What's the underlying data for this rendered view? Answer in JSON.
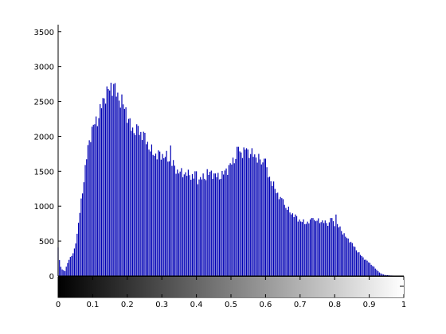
{
  "chart_data": {
    "type": "bar",
    "title": "",
    "xlabel": "",
    "ylabel": "",
    "xlim": [
      0,
      1
    ],
    "ylim": [
      0,
      3600
    ],
    "grid": false,
    "bar_color": "#0000b4",
    "colorbar": {
      "from": "#000000",
      "to": "#ffffff"
    },
    "y_ticks": [
      {
        "value": 0,
        "label": "0"
      },
      {
        "value": 500,
        "label": "500"
      },
      {
        "value": 1000,
        "label": "1000"
      },
      {
        "value": 1500,
        "label": "1500"
      },
      {
        "value": 2000,
        "label": "2000"
      },
      {
        "value": 2500,
        "label": "2500"
      },
      {
        "value": 3000,
        "label": "3000"
      },
      {
        "value": 3500,
        "label": "3500"
      }
    ],
    "x_ticks": [
      {
        "value": 0,
        "label": "0"
      },
      {
        "value": 0.1,
        "label": "0.1"
      },
      {
        "value": 0.2,
        "label": "0.2"
      },
      {
        "value": 0.3,
        "label": "0.3"
      },
      {
        "value": 0.4,
        "label": "0.4"
      },
      {
        "value": 0.5,
        "label": "0.5"
      },
      {
        "value": 0.6,
        "label": "0.6"
      },
      {
        "value": 0.7,
        "label": "0.7"
      },
      {
        "value": 0.8,
        "label": "0.8"
      },
      {
        "value": 0.9,
        "label": "0.9"
      },
      {
        "value": 1,
        "label": "1"
      }
    ],
    "anchors": [
      [
        0.0,
        400
      ],
      [
        0.005,
        170
      ],
      [
        0.012,
        90
      ],
      [
        0.02,
        70
      ],
      [
        0.03,
        230
      ],
      [
        0.045,
        330
      ],
      [
        0.055,
        600
      ],
      [
        0.065,
        1000
      ],
      [
        0.075,
        1400
      ],
      [
        0.085,
        1800
      ],
      [
        0.095,
        2050
      ],
      [
        0.105,
        2180
      ],
      [
        0.115,
        2250
      ],
      [
        0.125,
        2430
      ],
      [
        0.135,
        2580
      ],
      [
        0.145,
        2650
      ],
      [
        0.155,
        2720
      ],
      [
        0.165,
        2650
      ],
      [
        0.175,
        2560
      ],
      [
        0.185,
        2470
      ],
      [
        0.195,
        2400
      ],
      [
        0.205,
        2200
      ],
      [
        0.215,
        2100
      ],
      [
        0.225,
        2070
      ],
      [
        0.235,
        2050
      ],
      [
        0.245,
        2030
      ],
      [
        0.255,
        1950
      ],
      [
        0.265,
        1820
      ],
      [
        0.275,
        1760
      ],
      [
        0.285,
        1730
      ],
      [
        0.295,
        1740
      ],
      [
        0.305,
        1720
      ],
      [
        0.315,
        1700
      ],
      [
        0.325,
        1650
      ],
      [
        0.335,
        1580
      ],
      [
        0.345,
        1500
      ],
      [
        0.355,
        1480
      ],
      [
        0.365,
        1470
      ],
      [
        0.375,
        1460
      ],
      [
        0.385,
        1440
      ],
      [
        0.395,
        1400
      ],
      [
        0.405,
        1380
      ],
      [
        0.415,
        1400
      ],
      [
        0.425,
        1420
      ],
      [
        0.435,
        1460
      ],
      [
        0.445,
        1480
      ],
      [
        0.455,
        1440
      ],
      [
        0.465,
        1420
      ],
      [
        0.475,
        1450
      ],
      [
        0.485,
        1500
      ],
      [
        0.495,
        1560
      ],
      [
        0.505,
        1640
      ],
      [
        0.515,
        1720
      ],
      [
        0.525,
        1760
      ],
      [
        0.535,
        1780
      ],
      [
        0.545,
        1780
      ],
      [
        0.555,
        1760
      ],
      [
        0.565,
        1740
      ],
      [
        0.575,
        1700
      ],
      [
        0.585,
        1650
      ],
      [
        0.595,
        1580
      ],
      [
        0.605,
        1480
      ],
      [
        0.615,
        1380
      ],
      [
        0.625,
        1270
      ],
      [
        0.635,
        1180
      ],
      [
        0.645,
        1090
      ],
      [
        0.655,
        1010
      ],
      [
        0.665,
        950
      ],
      [
        0.675,
        900
      ],
      [
        0.685,
        860
      ],
      [
        0.695,
        810
      ],
      [
        0.705,
        780
      ],
      [
        0.715,
        760
      ],
      [
        0.725,
        770
      ],
      [
        0.735,
        790
      ],
      [
        0.745,
        790
      ],
      [
        0.755,
        790
      ],
      [
        0.765,
        780
      ],
      [
        0.775,
        760
      ],
      [
        0.785,
        750
      ],
      [
        0.795,
        760
      ],
      [
        0.805,
        740
      ],
      [
        0.815,
        690
      ],
      [
        0.825,
        610
      ],
      [
        0.835,
        540
      ],
      [
        0.845,
        500
      ],
      [
        0.855,
        430
      ],
      [
        0.865,
        360
      ],
      [
        0.875,
        300
      ],
      [
        0.885,
        250
      ],
      [
        0.895,
        210
      ],
      [
        0.905,
        170
      ],
      [
        0.915,
        120
      ],
      [
        0.925,
        70
      ],
      [
        0.935,
        30
      ],
      [
        0.945,
        15
      ],
      [
        0.96,
        8
      ],
      [
        0.98,
        4
      ],
      [
        1.0,
        0
      ]
    ],
    "spikes": [
      [
        0.16,
        2750
      ],
      [
        0.185,
        2600
      ],
      [
        0.232,
        2150
      ],
      [
        0.258,
        1900
      ],
      [
        0.325,
        1870
      ],
      [
        0.398,
        1500
      ],
      [
        0.43,
        1530
      ],
      [
        0.487,
        1540
      ],
      [
        0.52,
        1850
      ],
      [
        0.545,
        1830
      ],
      [
        0.598,
        1680
      ],
      [
        0.65,
        1100
      ],
      [
        0.735,
        830
      ],
      [
        0.79,
        830
      ],
      [
        0.805,
        880
      ]
    ],
    "num_bins": 256
  }
}
